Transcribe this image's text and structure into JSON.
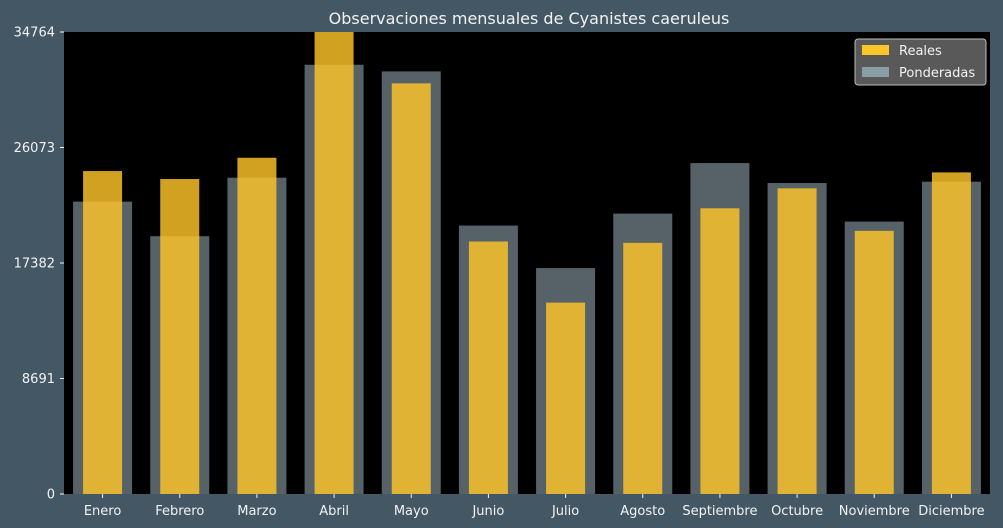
{
  "colors": {
    "background": "#435764",
    "plot_area": "#000000",
    "reales": "#ffc629",
    "ponderadas": "#8a9ea6",
    "text": "#f2f2f2"
  },
  "chart_data": {
    "type": "bar",
    "title": "Observaciones mensuales de Cyanistes caeruleus",
    "xlabel": "",
    "ylabel": "",
    "categories": [
      "Enero",
      "Febrero",
      "Marzo",
      "Abril",
      "Mayo",
      "Junio",
      "Julio",
      "Agosto",
      "Septiembre",
      "Octubre",
      "Noviembre",
      "Diciembre"
    ],
    "series": [
      {
        "name": "Reales",
        "values": [
          24300,
          23700,
          25300,
          34764,
          30900,
          19000,
          14400,
          18900,
          21500,
          23000,
          19800,
          24200
        ]
      },
      {
        "name": "Ponderadas",
        "values": [
          22000,
          19400,
          23800,
          32300,
          31800,
          20200,
          17000,
          21100,
          24900,
          23400,
          20500,
          23500
        ]
      }
    ],
    "ylim": [
      0,
      34764
    ],
    "yticks": [
      "0",
      "8691",
      "17382",
      "26073",
      "34764"
    ],
    "grid": false,
    "legend_position": "top-right"
  }
}
